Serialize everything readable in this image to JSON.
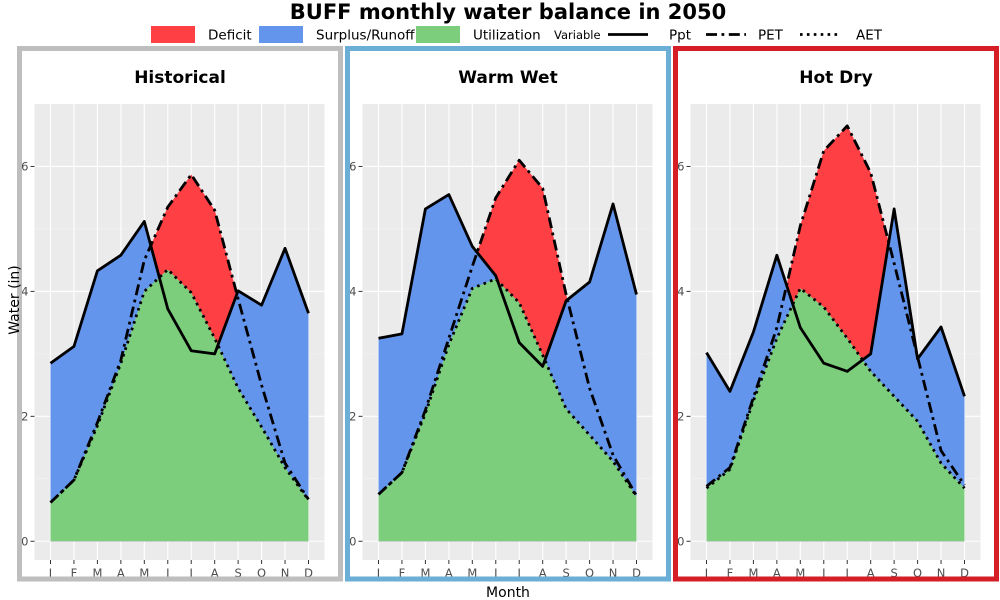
{
  "chart_data": {
    "type": "area",
    "title": "BUFF monthly water balance in 2050",
    "xlabel": "Month",
    "ylabel": "Water (in)",
    "ylim": [
      -0.3,
      7.0
    ],
    "y_ticks": [
      0,
      2,
      4,
      6
    ],
    "categories": [
      "J",
      "F",
      "M",
      "A",
      "M",
      "J",
      "J",
      "A",
      "S",
      "O",
      "N",
      "D"
    ],
    "legend": {
      "placement": "top",
      "fill_entries": [
        {
          "label": "Deficit",
          "color": "#fe3f44"
        },
        {
          "label": "Surplus/Runoff",
          "color": "#6495ed"
        },
        {
          "label": "Utilization",
          "color": "#7ccd7c"
        }
      ],
      "variable_title": "Variable",
      "line_entries": [
        {
          "label": "Ppt",
          "dash": "solid"
        },
        {
          "label": "PET",
          "dash": "longdash-dot"
        },
        {
          "label": "AET",
          "dash": "dotted"
        }
      ]
    },
    "panels": [
      {
        "name": "Historical",
        "border_color": "#bebebe",
        "series": [
          {
            "name": "Ppt",
            "values": [
              2.85,
              3.12,
              4.33,
              4.58,
              5.12,
              3.72,
              3.05,
              3.0,
              4.01,
              3.78,
              4.69,
              3.65
            ]
          },
          {
            "name": "PET",
            "values": [
              0.62,
              0.98,
              1.9,
              2.9,
              4.5,
              5.35,
              5.87,
              5.3,
              3.88,
              2.5,
              1.25,
              0.67
            ]
          },
          {
            "name": "AET",
            "values": [
              0.62,
              0.98,
              1.85,
              2.85,
              4.0,
              4.35,
              3.98,
              3.25,
              2.45,
              1.83,
              1.18,
              0.66
            ]
          }
        ]
      },
      {
        "name": "Warm Wet",
        "border_color": "#6baed6",
        "series": [
          {
            "name": "Ppt",
            "values": [
              3.25,
              3.32,
              5.32,
              5.55,
              4.72,
              4.25,
              3.18,
              2.8,
              3.85,
              4.15,
              5.4,
              3.95
            ]
          },
          {
            "name": "PET",
            "values": [
              0.75,
              1.1,
              2.1,
              3.25,
              4.4,
              5.5,
              6.1,
              5.65,
              3.95,
              2.45,
              1.38,
              0.73
            ]
          },
          {
            "name": "AET",
            "values": [
              0.75,
              1.1,
              2.05,
              3.15,
              4.05,
              4.2,
              3.82,
              2.98,
              2.12,
              1.7,
              1.28,
              0.72
            ]
          }
        ]
      },
      {
        "name": "Hot Dry",
        "border_color": "#d61e27",
        "series": [
          {
            "name": "Ppt",
            "values": [
              3.02,
              2.4,
              3.35,
              4.58,
              3.42,
              2.85,
              2.72,
              3.0,
              5.32,
              2.92,
              3.43,
              2.32
            ]
          },
          {
            "name": "PET",
            "values": [
              0.88,
              1.18,
              2.3,
              3.42,
              5.05,
              6.25,
              6.65,
              5.9,
              4.45,
              2.95,
              1.45,
              0.9
            ]
          },
          {
            "name": "AET",
            "values": [
              0.85,
              1.15,
              2.25,
              3.25,
              4.05,
              3.75,
              3.25,
              2.72,
              2.32,
              1.92,
              1.25,
              0.85
            ]
          }
        ]
      }
    ]
  }
}
